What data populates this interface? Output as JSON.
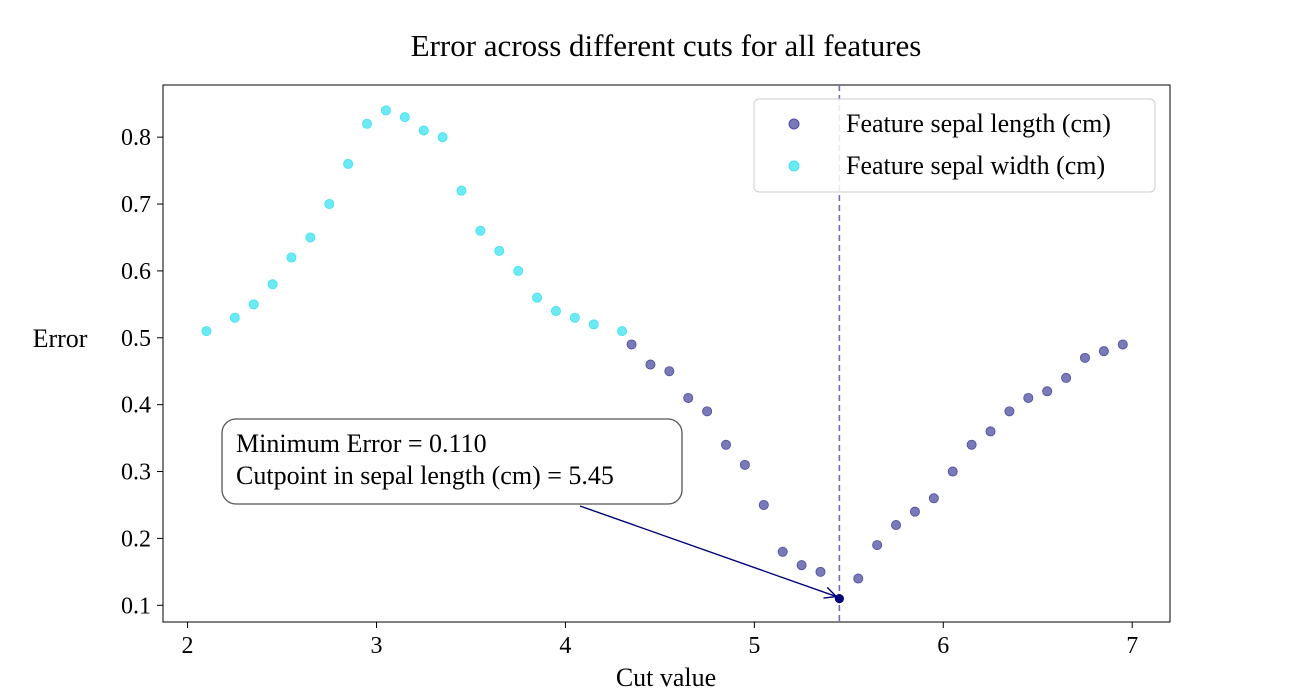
{
  "chart_data": {
    "type": "scatter",
    "title": "Error across different cuts for all features",
    "xlabel": "Cut value",
    "ylabel": "Error",
    "xlim": [
      1.87,
      7.2
    ],
    "ylim": [
      0.075,
      0.878
    ],
    "xticks": [
      2,
      3,
      4,
      5,
      6,
      7
    ],
    "yticks": [
      0.1,
      0.2,
      0.3,
      0.4,
      0.5,
      0.6,
      0.7,
      0.8
    ],
    "grid": false,
    "legend_position": "top-right",
    "series": [
      {
        "name": "Feature sepal length (cm)",
        "color": "#3b3b98",
        "points": [
          [
            4.35,
            0.49
          ],
          [
            4.45,
            0.46
          ],
          [
            4.55,
            0.45
          ],
          [
            4.65,
            0.41
          ],
          [
            4.75,
            0.39
          ],
          [
            4.85,
            0.34
          ],
          [
            4.95,
            0.31
          ],
          [
            5.05,
            0.25
          ],
          [
            5.15,
            0.18
          ],
          [
            5.25,
            0.16
          ],
          [
            5.35,
            0.15
          ],
          [
            5.55,
            0.14
          ],
          [
            5.65,
            0.19
          ],
          [
            5.75,
            0.22
          ],
          [
            5.85,
            0.24
          ],
          [
            5.95,
            0.26
          ],
          [
            6.05,
            0.3
          ],
          [
            6.15,
            0.34
          ],
          [
            6.25,
            0.36
          ],
          [
            6.35,
            0.39
          ],
          [
            6.45,
            0.41
          ],
          [
            6.55,
            0.42
          ],
          [
            6.65,
            0.44
          ],
          [
            6.75,
            0.47
          ],
          [
            6.85,
            0.48
          ],
          [
            6.95,
            0.49
          ]
        ]
      },
      {
        "name": "Feature sepal width (cm)",
        "color": "#2fe0f0",
        "points": [
          [
            2.1,
            0.51
          ],
          [
            2.25,
            0.53
          ],
          [
            2.35,
            0.55
          ],
          [
            2.45,
            0.58
          ],
          [
            2.55,
            0.62
          ],
          [
            2.65,
            0.65
          ],
          [
            2.75,
            0.7
          ],
          [
            2.85,
            0.76
          ],
          [
            2.95,
            0.82
          ],
          [
            3.05,
            0.84
          ],
          [
            3.15,
            0.83
          ],
          [
            3.25,
            0.81
          ],
          [
            3.35,
            0.8
          ],
          [
            3.45,
            0.72
          ],
          [
            3.55,
            0.66
          ],
          [
            3.65,
            0.63
          ],
          [
            3.75,
            0.6
          ],
          [
            3.85,
            0.56
          ],
          [
            3.95,
            0.54
          ],
          [
            4.05,
            0.53
          ],
          [
            4.15,
            0.52
          ],
          [
            4.3,
            0.51
          ]
        ]
      }
    ],
    "minimum_point": {
      "x": 5.45,
      "y": 0.11,
      "color": "#00007a"
    },
    "vline": {
      "x": 5.45,
      "style": "dashed",
      "color": "#6b6bc8"
    },
    "annotation": {
      "lines": [
        "Minimum Error = 0.110",
        "Cutpoint in sepal length (cm) = 5.45"
      ],
      "arrow_color": "#00007a"
    }
  }
}
